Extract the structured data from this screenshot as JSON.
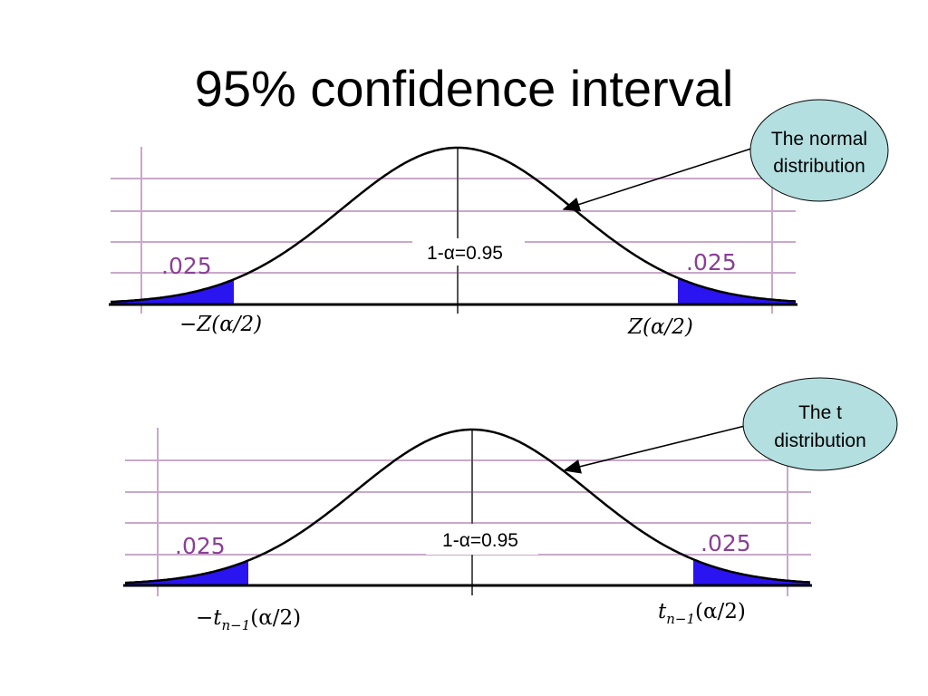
{
  "slide": {
    "title": "95% confidence interval"
  },
  "panels": [
    {
      "tail_left": ".025",
      "tail_right": ".025",
      "center": "1-α=0.95",
      "crit_left": "−Z(α/2)",
      "crit_right": "Z(α/2)",
      "callout_line1": "The normal",
      "callout_line2": "distribution"
    },
    {
      "tail_left": ".025",
      "tail_right": ".025",
      "center": "1-α=0.95",
      "crit_left_main": "−t",
      "crit_left_sub": "n−1",
      "crit_left_tail": "(α/2)",
      "crit_right_main": "t",
      "crit_right_sub": "n−1",
      "crit_right_tail": "(α/2)",
      "callout_line1": "The t",
      "callout_line2": "distribution"
    }
  ],
  "colors": {
    "tail_fill": "#2a14f0",
    "label_purple": "#8a3f96",
    "grid": "#c9a8c9",
    "bubble_fill": "#b3dfe0"
  }
}
